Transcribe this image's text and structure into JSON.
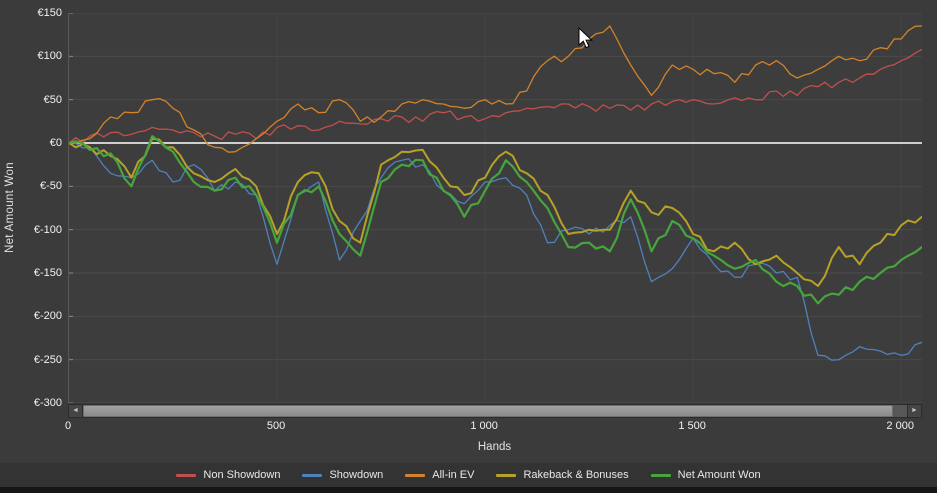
{
  "page": {
    "background": "#3b3b3b",
    "plot_background": "#3d3d3d",
    "grid_color": "#4a4a4a",
    "zero_line_color": "#cfcfcf"
  },
  "axes": {
    "y_title": "Net Amount Won",
    "x_title": "Hands"
  },
  "scrollbar": {
    "left_arrow": "◄",
    "right_arrow": "►"
  },
  "legend": {
    "position": "bottom",
    "items": [
      {
        "label": "Non Showdown",
        "color": "#c0504d"
      },
      {
        "label": "Showdown",
        "color": "#4f81bd"
      },
      {
        "label": "All-in EV",
        "color": "#d2832b"
      },
      {
        "label": "Rakeback & Bonuses",
        "color": "#b5a227"
      },
      {
        "label": "Net Amount Won",
        "color": "#46a53c"
      }
    ]
  },
  "chart_data": {
    "type": "line",
    "title": "",
    "xlabel": "Hands",
    "ylabel": "Net Amount Won",
    "xlim": [
      0,
      2050
    ],
    "ylim": [
      -300,
      150
    ],
    "grid": true,
    "legend_position": "bottom",
    "currency": "EUR",
    "xticks": [
      {
        "value": 0,
        "label": "0"
      },
      {
        "value": 500,
        "label": "500"
      },
      {
        "value": 1000,
        "label": "1 000"
      },
      {
        "value": 1500,
        "label": "1 500"
      },
      {
        "value": 2000,
        "label": "2 000"
      }
    ],
    "yticks": [
      {
        "value": 150,
        "label": "€150"
      },
      {
        "value": 100,
        "label": "€100"
      },
      {
        "value": 50,
        "label": "€50"
      },
      {
        "value": 0,
        "label": "€0"
      },
      {
        "value": -50,
        "label": "€-50"
      },
      {
        "value": -100,
        "label": "€-100"
      },
      {
        "value": -150,
        "label": "€-150"
      },
      {
        "value": -200,
        "label": "€-200"
      },
      {
        "value": -250,
        "label": "€-250"
      },
      {
        "value": -300,
        "label": "€-300"
      }
    ],
    "x": [
      0,
      50,
      100,
      150,
      200,
      250,
      300,
      350,
      400,
      450,
      500,
      550,
      600,
      650,
      700,
      750,
      800,
      850,
      900,
      950,
      1000,
      1050,
      1100,
      1150,
      1200,
      1250,
      1300,
      1350,
      1400,
      1450,
      1500,
      1550,
      1600,
      1650,
      1700,
      1750,
      1800,
      1850,
      1900,
      1950,
      2000,
      2050
    ],
    "series": [
      {
        "name": "Non Showdown",
        "color": "#c0504d",
        "width": 1.3,
        "values": [
          0,
          8,
          12,
          10,
          18,
          15,
          12,
          8,
          10,
          5,
          18,
          20,
          15,
          25,
          22,
          28,
          30,
          25,
          35,
          30,
          28,
          35,
          40,
          42,
          45,
          42,
          40,
          38,
          45,
          48,
          50,
          45,
          52,
          50,
          60,
          55,
          65,
          70,
          75,
          85,
          95,
          108
        ]
      },
      {
        "name": "Showdown",
        "color": "#4f81bd",
        "width": 1.3,
        "values": [
          0,
          -5,
          -35,
          -40,
          -20,
          -45,
          -25,
          -55,
          -45,
          -60,
          -140,
          -60,
          -45,
          -135,
          -90,
          -40,
          -20,
          -25,
          -55,
          -70,
          -45,
          -40,
          -60,
          -115,
          -100,
          -105,
          -95,
          -85,
          -160,
          -145,
          -110,
          -140,
          -155,
          -140,
          -150,
          -155,
          -245,
          -250,
          -235,
          -240,
          -245,
          -230
        ]
      },
      {
        "name": "All-in EV",
        "color": "#d2832b",
        "width": 1.3,
        "values": [
          0,
          5,
          30,
          35,
          50,
          40,
          15,
          -5,
          -10,
          5,
          25,
          45,
          35,
          50,
          25,
          30,
          45,
          50,
          45,
          40,
          50,
          45,
          60,
          95,
          100,
          120,
          135,
          90,
          55,
          90,
          85,
          80,
          70,
          90,
          95,
          75,
          85,
          100,
          95,
          110,
          120,
          135
        ]
      },
      {
        "name": "Rakeback & Bonuses",
        "color": "#b5a227",
        "width": 2,
        "values": [
          0,
          -5,
          -15,
          -40,
          5,
          -5,
          -35,
          -45,
          -30,
          -50,
          -105,
          -45,
          -35,
          -90,
          -115,
          -25,
          -10,
          -8,
          -40,
          -60,
          -40,
          -10,
          -35,
          -60,
          -105,
          -100,
          -100,
          -55,
          -80,
          -75,
          -105,
          -125,
          -115,
          -140,
          -130,
          -150,
          -165,
          -120,
          -140,
          -115,
          -95,
          -85
        ]
      },
      {
        "name": "Net Amount Won",
        "color": "#46a53c",
        "width": 2.2,
        "values": [
          0,
          -8,
          -12,
          -50,
          8,
          -10,
          -45,
          -55,
          -40,
          -60,
          -115,
          -60,
          -50,
          -105,
          -130,
          -45,
          -25,
          -20,
          -55,
          -85,
          -55,
          -20,
          -45,
          -75,
          -120,
          -115,
          -125,
          -65,
          -125,
          -90,
          -110,
          -130,
          -145,
          -135,
          -160,
          -165,
          -185,
          -175,
          -160,
          -150,
          -135,
          -120
        ]
      }
    ]
  }
}
